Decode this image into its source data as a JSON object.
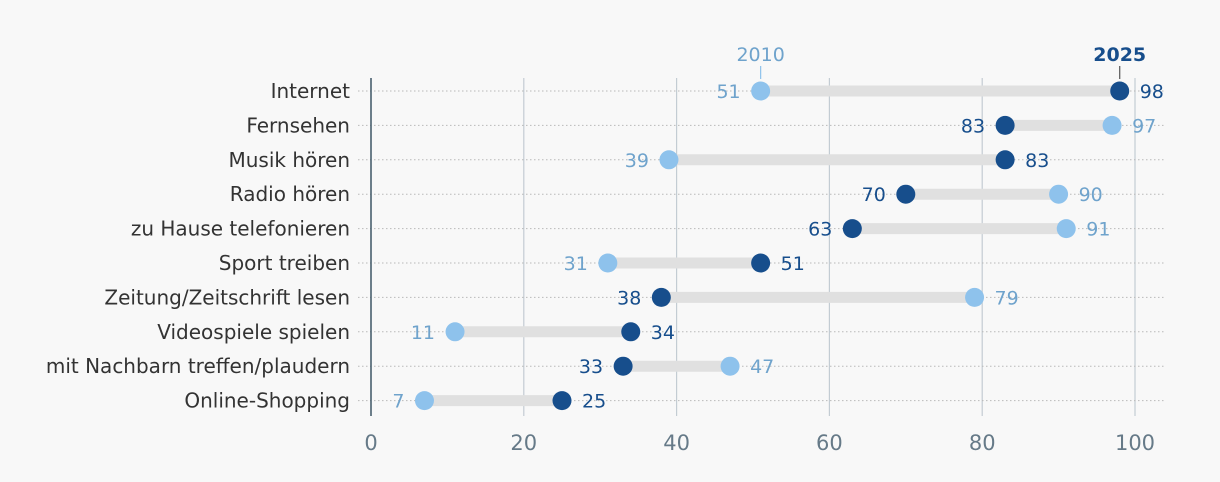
{
  "chart_data": {
    "type": "dumbbell",
    "categories": [
      "Internet",
      "Fernsehen",
      "Musik hören",
      "Radio hören",
      "zu Hause telefonieren",
      "Sport treiben",
      "Zeitung/Zeitschrift lesen",
      "Videospiele spielen",
      "mit Nachbarn treffen/plaudern",
      "Online-Shopping"
    ],
    "series": [
      {
        "name": "2010",
        "color": "#8ec2ec",
        "label_color": "#6fa3cc",
        "values": [
          51,
          97,
          39,
          90,
          91,
          31,
          79,
          11,
          47,
          7
        ]
      },
      {
        "name": "2025",
        "color": "#174e8c",
        "label_color": "#174e8c",
        "values": [
          98,
          83,
          83,
          70,
          63,
          51,
          38,
          34,
          33,
          25
        ]
      }
    ],
    "xlim": [
      0,
      100
    ],
    "xticks": [
      0,
      20,
      40,
      60,
      80,
      100
    ],
    "grid": true,
    "colors": {
      "bar": "#e0e0e0",
      "grid": "#c3ccd3",
      "axis": "#3d5566",
      "row_line": "#b9b9b9"
    }
  }
}
